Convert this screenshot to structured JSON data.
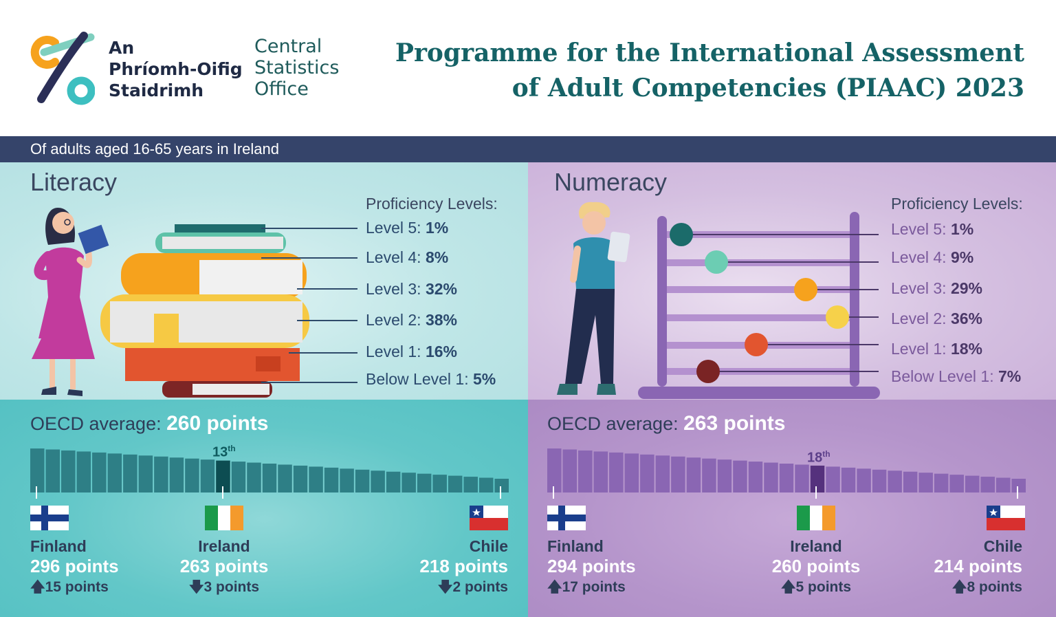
{
  "header": {
    "logo_irish": [
      "An",
      "Phríomh-Oifig",
      "Staidrimh"
    ],
    "logo_english": [
      "Central",
      "Statistics",
      "Office"
    ],
    "title_line1": "Programme for the International Assessment",
    "title_line2": "of Adult Competencies (PIAAC) 2023"
  },
  "subtitle": "Of adults aged 16-65 years in Ireland",
  "colors": {
    "navy": "#35446a",
    "teal_title": "#156266",
    "literacy_bg": "#b3e0e2",
    "numeracy_bg": "#caafd9",
    "literacy_band": "#5ec5c6",
    "numeracy_band": "#b393c9"
  },
  "literacy": {
    "heading": "Literacy",
    "proficiency_heading": "Proficiency Levels:",
    "levels": [
      {
        "label": "Level 5:",
        "value": "1%"
      },
      {
        "label": "Level 4:",
        "value": "8%"
      },
      {
        "label": "Level 3:",
        "value": "32%"
      },
      {
        "label": "Level 2:",
        "value": "38%"
      },
      {
        "label": "Level 1:",
        "value": "16%"
      },
      {
        "label": "Below Level 1:",
        "value": "5%"
      }
    ],
    "oecd_label": "OECD average:",
    "oecd_value": "260 points",
    "rank": "13",
    "rank_suffix": "th",
    "rank_position": 13,
    "country_count": 31,
    "countries": [
      {
        "name": "Finland",
        "points": "296 points",
        "delta": "15 points",
        "direction": "up",
        "flag": "finland-flag"
      },
      {
        "name": "Ireland",
        "points": "263 points",
        "delta": "3 points",
        "direction": "down",
        "flag": "ireland-flag"
      },
      {
        "name": "Chile",
        "points": "218 points",
        "delta": "2 points",
        "direction": "down",
        "flag": "chile-flag"
      }
    ]
  },
  "numeracy": {
    "heading": "Numeracy",
    "proficiency_heading": "Proficiency Levels:",
    "levels": [
      {
        "label": "Level 5:",
        "value": "1%"
      },
      {
        "label": "Level 4:",
        "value": "9%"
      },
      {
        "label": "Level 3:",
        "value": "29%"
      },
      {
        "label": "Level 2:",
        "value": "36%"
      },
      {
        "label": "Level 1:",
        "value": "18%"
      },
      {
        "label": "Below Level 1:",
        "value": "7%"
      }
    ],
    "oecd_label": "OECD average:",
    "oecd_value": "263 points",
    "rank": "18",
    "rank_suffix": "th",
    "rank_position": 18,
    "country_count": 31,
    "countries": [
      {
        "name": "Finland",
        "points": "294 points",
        "delta": "17 points",
        "direction": "up",
        "flag": "finland-flag"
      },
      {
        "name": "Ireland",
        "points": "260 points",
        "delta": "5 points",
        "direction": "up",
        "flag": "ireland-flag"
      },
      {
        "name": "Chile",
        "points": "214 points",
        "delta": "8 points",
        "direction": "up",
        "flag": "chile-flag"
      }
    ]
  }
}
